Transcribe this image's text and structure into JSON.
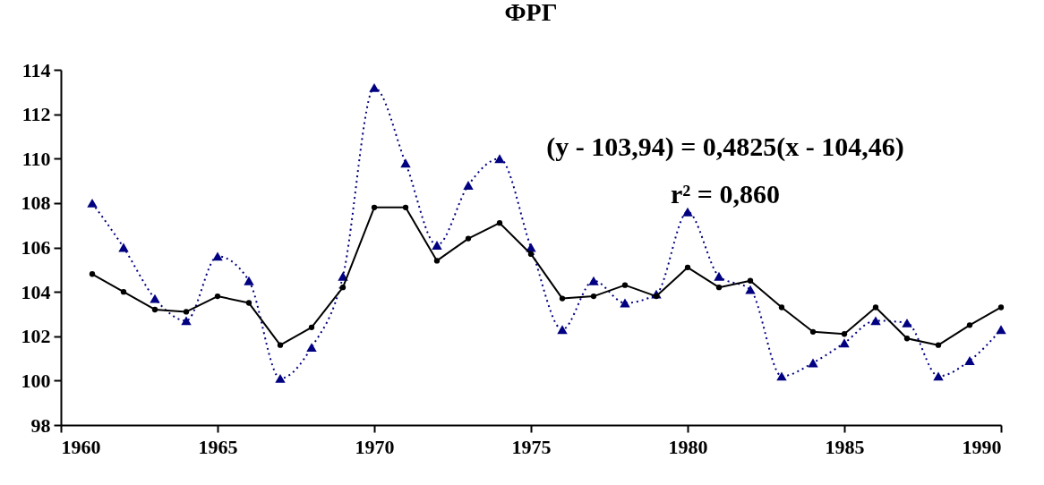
{
  "chart_data": {
    "type": "line",
    "title": "ФРГ",
    "x": [
      1961,
      1962,
      1963,
      1964,
      1965,
      1966,
      1967,
      1968,
      1969,
      1970,
      1971,
      1972,
      1973,
      1974,
      1975,
      1976,
      1977,
      1978,
      1979,
      1980,
      1981,
      1982,
      1983,
      1984,
      1985,
      1986,
      1987,
      1988,
      1989,
      1990
    ],
    "series": [
      {
        "color": "#000000",
        "marker": "circle",
        "line_style": "solid",
        "values": [
          104.8,
          104.0,
          103.2,
          103.1,
          103.8,
          103.5,
          101.6,
          102.4,
          104.2,
          107.8,
          107.8,
          105.4,
          106.4,
          107.1,
          105.7,
          103.7,
          103.8,
          104.3,
          103.8,
          105.1,
          104.2,
          104.5,
          103.3,
          102.2,
          102.1,
          103.3,
          101.9,
          101.6,
          102.5,
          103.3
        ]
      },
      {
        "color": "#000080",
        "marker": "triangle",
        "line_style": "dotted",
        "values": [
          108.0,
          106.0,
          103.7,
          102.7,
          105.6,
          104.5,
          100.1,
          101.5,
          104.7,
          113.2,
          109.8,
          106.1,
          108.8,
          110.0,
          106.0,
          102.3,
          104.5,
          103.5,
          103.9,
          107.6,
          104.7,
          104.1,
          100.2,
          100.8,
          101.7,
          102.7,
          102.6,
          100.2,
          100.9,
          102.3
        ]
      }
    ],
    "xlim": [
      1960,
      1990
    ],
    "xticks": [
      1960,
      1965,
      1970,
      1975,
      1980,
      1985,
      1990
    ],
    "ylim": [
      98,
      114
    ],
    "yticks": [
      98,
      100,
      102,
      104,
      106,
      108,
      110,
      112,
      114
    ],
    "grid": false,
    "annotations": [
      "(y  - 103,94) = 0,4825(x  - 104,46)",
      "r² = 0,860"
    ]
  }
}
